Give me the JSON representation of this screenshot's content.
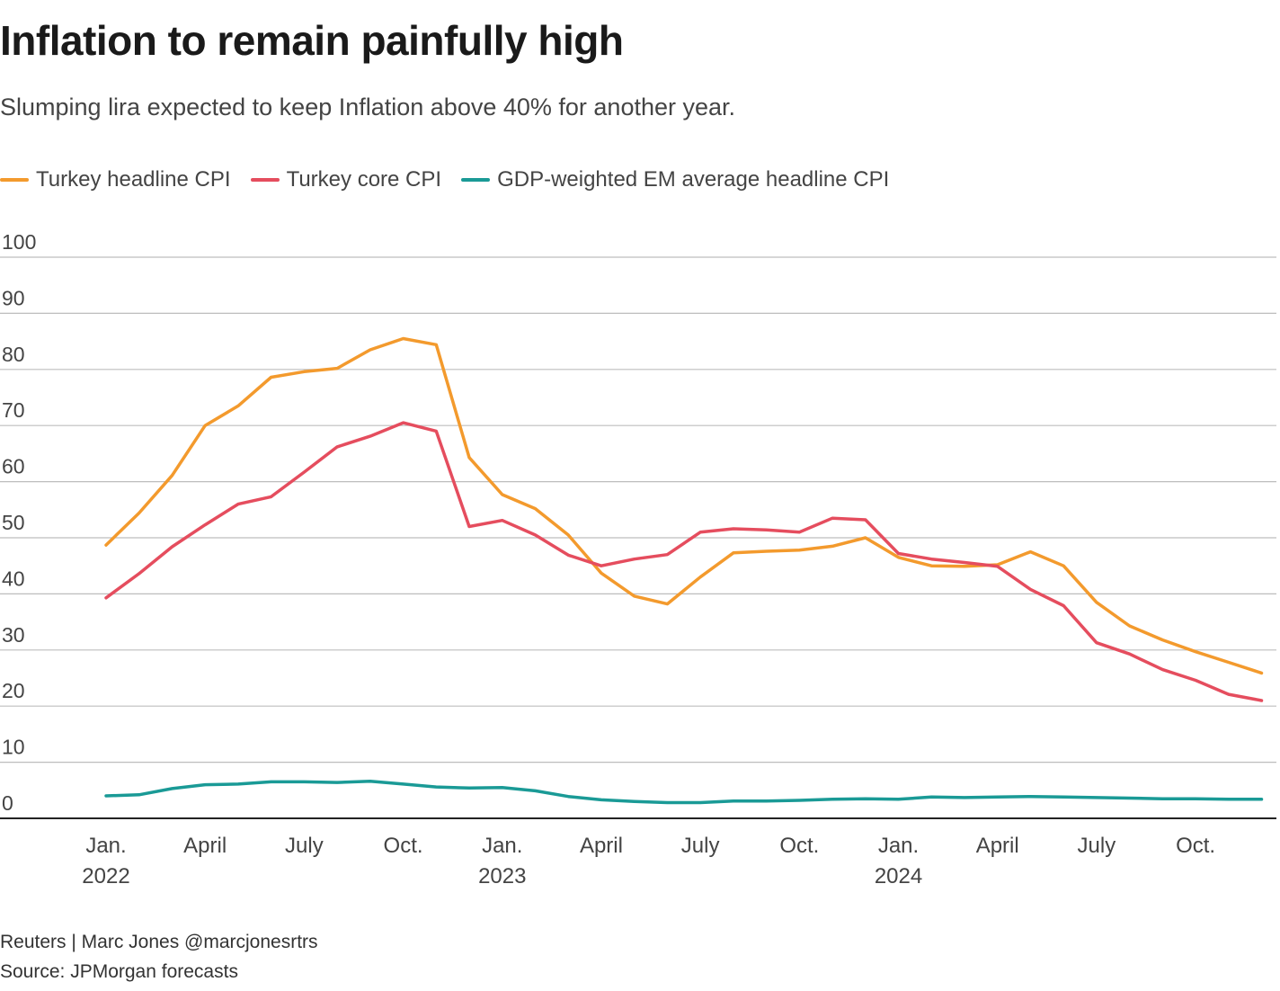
{
  "title": "Inflation to remain painfully high",
  "subtitle": "Slumping lira expected to keep Inflation above 40% for another year.",
  "footer": {
    "credit": "Reuters | Marc Jones @marcjonesrtrs",
    "source": "Source: JPMorgan forecasts"
  },
  "chart_data": {
    "type": "line",
    "title": "Inflation to remain painfully high",
    "ylim": [
      0,
      100
    ],
    "yticks": [
      0,
      10,
      20,
      30,
      40,
      50,
      60,
      70,
      80,
      90,
      100
    ],
    "grid": true,
    "legend_position": "top-left",
    "xlabel": "",
    "ylabel": "",
    "x_start": "2022-01",
    "n_months": 36,
    "x_ticks": [
      {
        "index": 0,
        "month": "Jan.",
        "year": "2022"
      },
      {
        "index": 3,
        "month": "April",
        "year": ""
      },
      {
        "index": 6,
        "month": "July",
        "year": ""
      },
      {
        "index": 9,
        "month": "Oct.",
        "year": ""
      },
      {
        "index": 12,
        "month": "Jan.",
        "year": "2023"
      },
      {
        "index": 15,
        "month": "April",
        "year": ""
      },
      {
        "index": 18,
        "month": "July",
        "year": ""
      },
      {
        "index": 21,
        "month": "Oct.",
        "year": ""
      },
      {
        "index": 24,
        "month": "Jan.",
        "year": "2024"
      },
      {
        "index": 27,
        "month": "April",
        "year": ""
      },
      {
        "index": 30,
        "month": "July",
        "year": ""
      },
      {
        "index": 33,
        "month": "Oct.",
        "year": ""
      }
    ],
    "series": [
      {
        "name": "Turkey headline CPI",
        "color": "#f39a2d",
        "values": [
          48.7,
          54.4,
          61.1,
          70.0,
          73.5,
          78.6,
          79.6,
          80.2,
          83.5,
          85.5,
          84.4,
          64.3,
          57.7,
          55.2,
          50.5,
          43.7,
          39.6,
          38.2,
          43.0,
          47.3,
          47.6,
          47.8,
          48.5,
          50.0,
          46.5,
          45.0,
          44.9,
          45.2,
          47.5,
          45.0,
          38.5,
          34.3,
          31.8,
          29.7,
          27.8,
          25.9
        ]
      },
      {
        "name": "Turkey core CPI",
        "color": "#e54d5e",
        "values": [
          39.3,
          43.6,
          48.4,
          52.3,
          56.0,
          57.3,
          61.7,
          66.2,
          68.1,
          70.5,
          69.0,
          52.0,
          53.1,
          50.5,
          46.9,
          45.0,
          46.2,
          47.0,
          51.0,
          51.6,
          51.4,
          51.0,
          53.5,
          53.2,
          47.2,
          46.2,
          45.6,
          44.9,
          40.8,
          37.9,
          31.3,
          29.3,
          26.5,
          24.6,
          22.1,
          21.0
        ]
      },
      {
        "name": "GDP-weighted EM average headline CPI",
        "color": "#1a9a96",
        "values": [
          4.0,
          4.2,
          5.3,
          6.0,
          6.1,
          6.5,
          6.5,
          6.4,
          6.6,
          6.1,
          5.6,
          5.4,
          5.5,
          4.9,
          3.9,
          3.3,
          3.0,
          2.8,
          2.8,
          3.1,
          3.1,
          3.2,
          3.4,
          3.5,
          3.4,
          3.8,
          3.7,
          3.8,
          3.9,
          3.8,
          3.7,
          3.6,
          3.5,
          3.5,
          3.4,
          3.4
        ]
      }
    ]
  }
}
